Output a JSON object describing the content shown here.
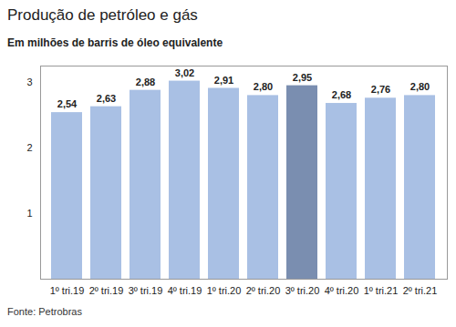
{
  "chart_data": {
    "type": "bar",
    "title": "Produção de petróleo e gás",
    "subtitle": "Em milhões de barris de óleo equivalente",
    "caption": "Fonte: Petrobras",
    "categories": [
      "1º tri.19",
      "2º tri.19",
      "3º tri.19",
      "4º tri.19",
      "1º tri.20",
      "2º tri.20",
      "3º tri.20",
      "4º tri.20",
      "1º tri.21",
      "2º tri.21"
    ],
    "values": [
      2.54,
      2.63,
      2.88,
      3.02,
      2.91,
      2.8,
      2.95,
      2.68,
      2.76,
      2.8
    ],
    "value_labels": [
      "2,54",
      "2,63",
      "2,88",
      "3,02",
      "2,91",
      "2,80",
      "2,95",
      "2,68",
      "2,76",
      "2,80"
    ],
    "colors": [
      "#a9c0e4",
      "#a9c0e4",
      "#a9c0e4",
      "#a9c0e4",
      "#a9c0e4",
      "#a9c0e4",
      "#7a8eb0",
      "#a9c0e4",
      "#a9c0e4",
      "#a9c0e4"
    ],
    "data_labels": true,
    "ylim": [
      0,
      3.25
    ],
    "yticks": [
      1,
      2,
      3
    ],
    "grid": false
  }
}
